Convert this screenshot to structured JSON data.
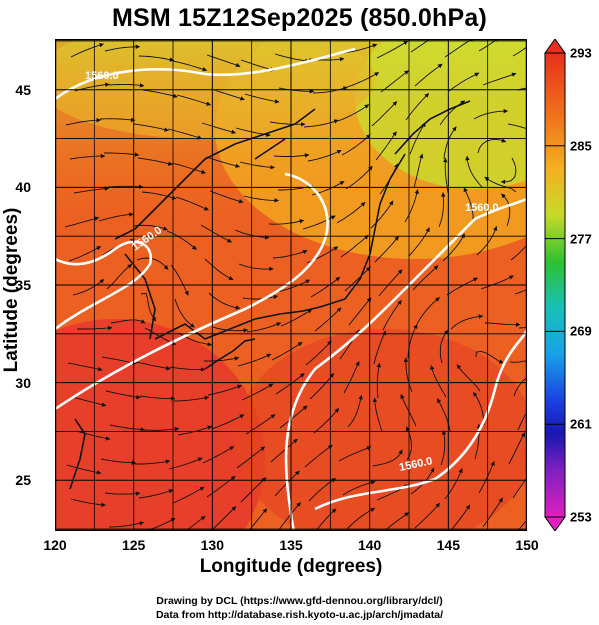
{
  "title": "MSM 15Z12Sep2025 (850.0hPa)",
  "x_axis": {
    "label": "Longitude (degrees)",
    "ticks": [
      "120",
      "125",
      "130",
      "135",
      "140",
      "145",
      "150"
    ],
    "range": [
      120,
      150
    ]
  },
  "y_axis": {
    "label": "Latitude  (degrees)",
    "ticks": [
      "25",
      "30",
      "35",
      "40",
      "45"
    ],
    "range": [
      22.4,
      47.6
    ]
  },
  "colorbar": {
    "ticks": [
      "293",
      "285",
      "277",
      "269",
      "261",
      "253"
    ],
    "range": [
      253,
      293
    ]
  },
  "contour_labels": [
    "1560.0",
    "1560.0",
    "1560.0",
    "1560.0"
  ],
  "credits": {
    "line1": "Drawing by DCL (https://www.gfd-dennou.org/library/dcl/)",
    "line2": "Data from http://database.rish.kyoto-u.ac.jp/arch/jmadata/"
  },
  "colors": {
    "warm": "#e8401c",
    "mid": "#f29020",
    "cool": "#a8d42a",
    "contour": "#ffffff",
    "coast": "#111111"
  }
}
